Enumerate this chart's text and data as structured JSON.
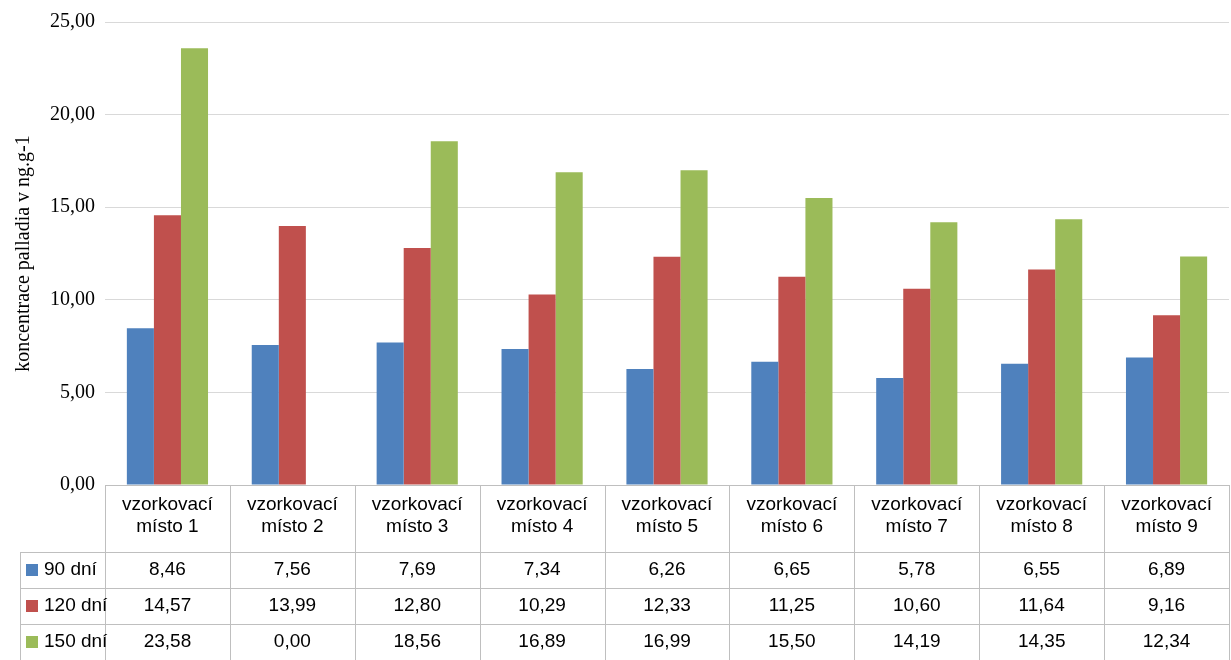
{
  "chart_data": {
    "type": "bar",
    "ylabel": "koncentrace palladia v ng.g-1",
    "categories": [
      "vzorkovací místo 1",
      "vzorkovací místo 2",
      "vzorkovací místo 3",
      "vzorkovací místo 4",
      "vzorkovací místo 5",
      "vzorkovací místo 6",
      "vzorkovací místo 7",
      "vzorkovací místo 8",
      "vzorkovací místo 9"
    ],
    "series": [
      {
        "name": "90 dní",
        "color": "#4f81bd",
        "values": [
          8.46,
          7.56,
          7.69,
          7.34,
          6.26,
          6.65,
          5.78,
          6.55,
          6.89
        ],
        "value_labels": [
          "8,46",
          "7,56",
          "7,69",
          "7,34",
          "6,26",
          "6,65",
          "5,78",
          "6,55",
          "6,89"
        ]
      },
      {
        "name": "120 dní",
        "color": "#c0504d",
        "values": [
          14.57,
          13.99,
          12.8,
          10.29,
          12.33,
          11.25,
          10.6,
          11.64,
          9.16
        ],
        "value_labels": [
          "14,57",
          "13,99",
          "12,80",
          "10,29",
          "12,33",
          "11,25",
          "10,60",
          "11,64",
          "9,16"
        ]
      },
      {
        "name": "150 dní",
        "color": "#9bbb59",
        "values": [
          23.58,
          0.0,
          18.56,
          16.89,
          16.99,
          15.5,
          14.19,
          14.35,
          12.34
        ],
        "value_labels": [
          "23,58",
          "0,00",
          "18,56",
          "16,89",
          "16,99",
          "15,50",
          "14,19",
          "14,35",
          "12,34"
        ]
      }
    ],
    "ylim": [
      0,
      25
    ],
    "yticks": [
      {
        "value": 0,
        "label": "0,00"
      },
      {
        "value": 5,
        "label": "5,00"
      },
      {
        "value": 10,
        "label": "10,00"
      },
      {
        "value": 15,
        "label": "15,00"
      },
      {
        "value": 20,
        "label": "20,00"
      },
      {
        "value": 25,
        "label": "25,00"
      }
    ],
    "grid": "y",
    "legend": "bottom"
  }
}
